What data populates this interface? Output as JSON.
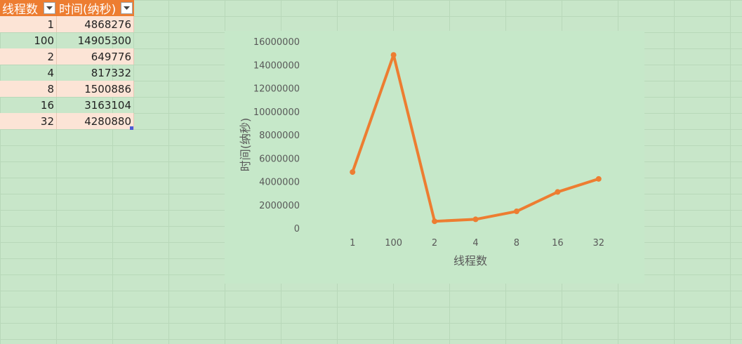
{
  "table": {
    "headers": [
      "线程数",
      "时间(纳秒)"
    ],
    "rows": [
      [
        "1",
        "4868276"
      ],
      [
        "100",
        "14905300"
      ],
      [
        "2",
        "649776"
      ],
      [
        "4",
        "817332"
      ],
      [
        "8",
        "1500886"
      ],
      [
        "16",
        "3163104"
      ],
      [
        "32",
        "4280880"
      ]
    ]
  },
  "chart_data": {
    "type": "line",
    "categories": [
      "1",
      "100",
      "2",
      "4",
      "8",
      "16",
      "32"
    ],
    "series": [
      {
        "values": [
          4868276,
          14905300,
          649776,
          817332,
          1500886,
          3163104,
          4280880
        ]
      }
    ],
    "xlabel": "线程数",
    "ylabel": "时间(纳秒)",
    "ylim": [
      0,
      16000000
    ],
    "yticks": [
      "0",
      "2000000",
      "4000000",
      "6000000",
      "8000000",
      "10000000",
      "12000000",
      "14000000",
      "16000000"
    ],
    "grid": false,
    "line_color": "#ed7d31"
  },
  "colors": {
    "sheet_background": "#c8e6c9",
    "header_fill": "#ed7d31",
    "band_fill": "#fce4d6"
  }
}
